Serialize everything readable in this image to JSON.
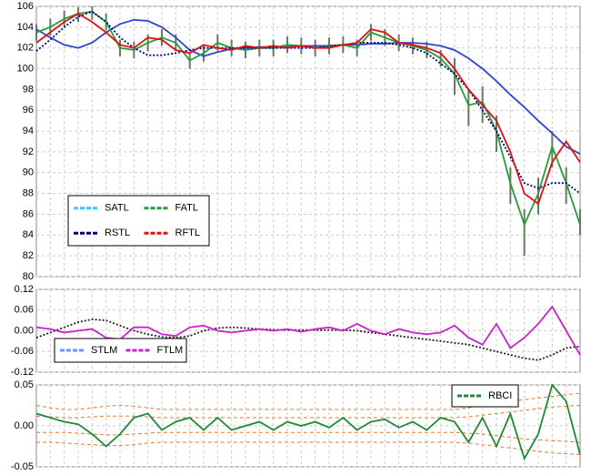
{
  "chart_data": [
    {
      "type": "line",
      "ylim": [
        80,
        106
      ],
      "yticks": [
        80,
        82,
        84,
        86,
        88,
        90,
        92,
        94,
        96,
        98,
        100,
        102,
        104,
        106
      ],
      "grid": true,
      "bars": {
        "color": "#5f7f5f",
        "high": [
          104.3,
          104.8,
          105.6,
          105.9,
          106,
          105.3,
          102.8,
          102.6,
          103.3,
          103.8,
          103.3,
          101.6,
          102.3,
          103.3,
          102.8,
          102.6,
          102.8,
          102.8,
          103.1,
          103,
          102.8,
          103,
          103.1,
          102.8,
          104.3,
          103.8,
          103.3,
          103,
          102.6,
          101.8,
          101,
          98,
          98.3,
          95.5,
          90.5,
          86.5,
          89.5,
          94,
          90.5,
          86.5
        ],
        "low": [
          102.7,
          103.2,
          104,
          104.5,
          104.7,
          103.7,
          101.2,
          101,
          101.7,
          102.2,
          101.7,
          100,
          100.7,
          101.7,
          101.2,
          101,
          101.2,
          101.2,
          101.5,
          101.4,
          101.2,
          101.4,
          101.5,
          101.2,
          102.7,
          102.2,
          101.7,
          101.4,
          101,
          100.2,
          97.5,
          94.5,
          94.8,
          92,
          87,
          82,
          86,
          90.5,
          87,
          84
        ]
      },
      "series": [
        {
          "name": "SATL",
          "color": "#3344cc",
          "legend_color": "#33ccff",
          "values": [
            103.8,
            103,
            102.3,
            102,
            102.5,
            103.5,
            104.3,
            104.7,
            104.6,
            104,
            103,
            101.8,
            101.2,
            101.6,
            101.9,
            102,
            102.1,
            102.1,
            102.1,
            102.2,
            102.2,
            102.2,
            102.3,
            102.3,
            102.4,
            102.4,
            102.5,
            102.5,
            102.4,
            102.2,
            101.8,
            101,
            100,
            98.8,
            97.5,
            96.3,
            95,
            93.8,
            92.5,
            91.8
          ]
        },
        {
          "name": "FATL",
          "color": "#2a9a3c",
          "values": [
            103.5,
            104,
            104.8,
            105.3,
            105.5,
            104.5,
            102,
            101.8,
            102.5,
            103,
            102.5,
            100.8,
            101.5,
            102.5,
            102,
            101.8,
            102,
            102,
            102.3,
            102.2,
            102,
            102.2,
            102.3,
            102,
            103.5,
            103,
            102.5,
            102.2,
            101.8,
            101,
            99.5,
            96.5,
            96.8,
            94,
            89,
            85,
            88,
            92.5,
            89,
            85
          ]
        },
        {
          "name": "RSTL",
          "color": "#000080",
          "style": "dotted",
          "values": [
            101.7,
            102.8,
            104,
            105,
            105.5,
            104.5,
            103,
            102,
            101.3,
            101.3,
            101.5,
            101.8,
            102,
            102,
            102,
            102,
            102,
            102,
            102,
            102,
            102,
            102.2,
            102.3,
            102.5,
            102.5,
            102.5,
            102.3,
            102,
            101.5,
            100.5,
            99.5,
            98,
            96,
            94,
            91.5,
            89,
            88.5,
            89,
            89,
            88
          ]
        },
        {
          "name": "RFTL",
          "color": "#dd1111",
          "values": [
            102.5,
            103.5,
            104.5,
            105.3,
            104.5,
            103.5,
            102.3,
            102,
            103,
            102.8,
            101.8,
            101.5,
            102.3,
            102,
            101.8,
            102.2,
            102,
            102.2,
            102,
            102.2,
            102,
            102,
            102.3,
            102.5,
            103.8,
            103.5,
            102.5,
            102.3,
            102,
            101.5,
            100,
            98,
            96.5,
            95,
            92,
            88,
            87,
            91,
            93,
            91
          ]
        }
      ]
    },
    {
      "type": "line",
      "ylim": [
        -0.12,
        0.12
      ],
      "grid": true,
      "yticks": [
        -0.12,
        -0.06,
        {
          "value": 0,
          "label": "0.00"
        },
        0.06,
        0.12
      ],
      "series": [
        {
          "name": "STLM",
          "color": "#222222",
          "legend_color": "#6699ff",
          "style": "dotted",
          "values": [
            -0.02,
            -0.005,
            0.01,
            0.025,
            0.033,
            0.03,
            0.015,
            0,
            -0.01,
            -0.018,
            -0.02,
            -0.015,
            0,
            0.008,
            0.01,
            0.008,
            0.005,
            0.003,
            0.002,
            0.002,
            0.002,
            0.002,
            0.002,
            0,
            -0.005,
            -0.01,
            -0.015,
            -0.02,
            -0.025,
            -0.03,
            -0.035,
            -0.04,
            -0.05,
            -0.06,
            -0.07,
            -0.08,
            -0.085,
            -0.07,
            -0.05,
            -0.045
          ]
        },
        {
          "name": "FTLM",
          "color": "#cc22cc",
          "values": [
            0.01,
            0.005,
            -0.005,
            0,
            0.005,
            -0.02,
            -0.025,
            0.01,
            0.01,
            -0.01,
            -0.015,
            0.01,
            0.015,
            0,
            -0.005,
            0,
            0.005,
            0,
            0.005,
            -0.003,
            0.005,
            0.01,
            0,
            0.02,
            0,
            -0.01,
            0.005,
            -0.005,
            -0.01,
            -0.005,
            0.015,
            -0.02,
            -0.04,
            0.02,
            -0.05,
            -0.02,
            0.02,
            0.07,
            0,
            -0.07
          ]
        }
      ]
    },
    {
      "type": "line",
      "ylim": [
        -0.05,
        0.05
      ],
      "grid": true,
      "yticks": [
        -0.05,
        {
          "value": 0,
          "label": "0.00"
        },
        0.05
      ],
      "series": [
        {
          "color": "#e07a30",
          "style": "dashed",
          "values": [
            0.025,
            0.022,
            0.02,
            0.02,
            0.022,
            0.024,
            0.025,
            0.024,
            0.022,
            0.02,
            0.02,
            0.02,
            0.02,
            0.02,
            0.02,
            0.02,
            0.02,
            0.02,
            0.02,
            0.02,
            0.02,
            0.02,
            0.02,
            0.02,
            0.02,
            0.02,
            0.02,
            0.02,
            0.02,
            0.02,
            0.02,
            0.022,
            0.025,
            0.028,
            0.03,
            0.032,
            0.034,
            0.036,
            0.038,
            0.04
          ]
        },
        {
          "color": "#e07a30",
          "style": "dashed",
          "values": [
            0.012,
            0.011,
            0.01,
            0.01,
            0.011,
            0.012,
            0.012,
            0.012,
            0.011,
            0.01,
            0.01,
            0.01,
            0.01,
            0.01,
            0.01,
            0.01,
            0.01,
            0.01,
            0.01,
            0.01,
            0.01,
            0.01,
            0.01,
            0.01,
            0.01,
            0.01,
            0.01,
            0.01,
            0.01,
            0.01,
            0.01,
            0.011,
            0.013,
            0.015,
            0.017,
            0.019,
            0.021,
            0.023,
            0.024,
            0.025
          ]
        },
        {
          "color": "#e07a30",
          "style": "dashed",
          "values": [
            -0.008,
            -0.008,
            -0.008,
            -0.009,
            -0.01,
            -0.011,
            -0.011,
            -0.01,
            -0.009,
            -0.008,
            -0.008,
            -0.008,
            -0.008,
            -0.008,
            -0.008,
            -0.008,
            -0.008,
            -0.008,
            -0.008,
            -0.008,
            -0.008,
            -0.008,
            -0.008,
            -0.008,
            -0.008,
            -0.008,
            -0.008,
            -0.008,
            -0.008,
            -0.008,
            -0.008,
            -0.009,
            -0.01,
            -0.012,
            -0.014,
            -0.016,
            -0.017,
            -0.018,
            -0.019,
            -0.02
          ]
        },
        {
          "color": "#e07a30",
          "style": "dashed",
          "values": [
            -0.02,
            -0.02,
            -0.021,
            -0.022,
            -0.023,
            -0.024,
            -0.024,
            -0.023,
            -0.021,
            -0.02,
            -0.02,
            -0.02,
            -0.02,
            -0.02,
            -0.02,
            -0.02,
            -0.02,
            -0.02,
            -0.02,
            -0.02,
            -0.02,
            -0.02,
            -0.02,
            -0.02,
            -0.02,
            -0.02,
            -0.02,
            -0.02,
            -0.02,
            -0.02,
            -0.02,
            -0.021,
            -0.023,
            -0.025,
            -0.027,
            -0.029,
            -0.031,
            -0.033,
            -0.034,
            -0.035
          ]
        },
        {
          "name": "RBCI",
          "color": "#1f8a35",
          "values": [
            0.015,
            0.01,
            0.005,
            0.002,
            -0.01,
            -0.025,
            -0.01,
            0.01,
            0.015,
            -0.005,
            0.005,
            0.01,
            -0.005,
            0.01,
            -0.005,
            0,
            0.005,
            -0.005,
            0.005,
            0,
            0.005,
            -0.002,
            0.01,
            -0.005,
            0.005,
            0.008,
            -0.002,
            0.005,
            -0.005,
            0.01,
            0.005,
            -0.02,
            0.01,
            -0.025,
            0.015,
            -0.04,
            -0.01,
            0.05,
            0.03,
            -0.035
          ]
        }
      ]
    }
  ]
}
